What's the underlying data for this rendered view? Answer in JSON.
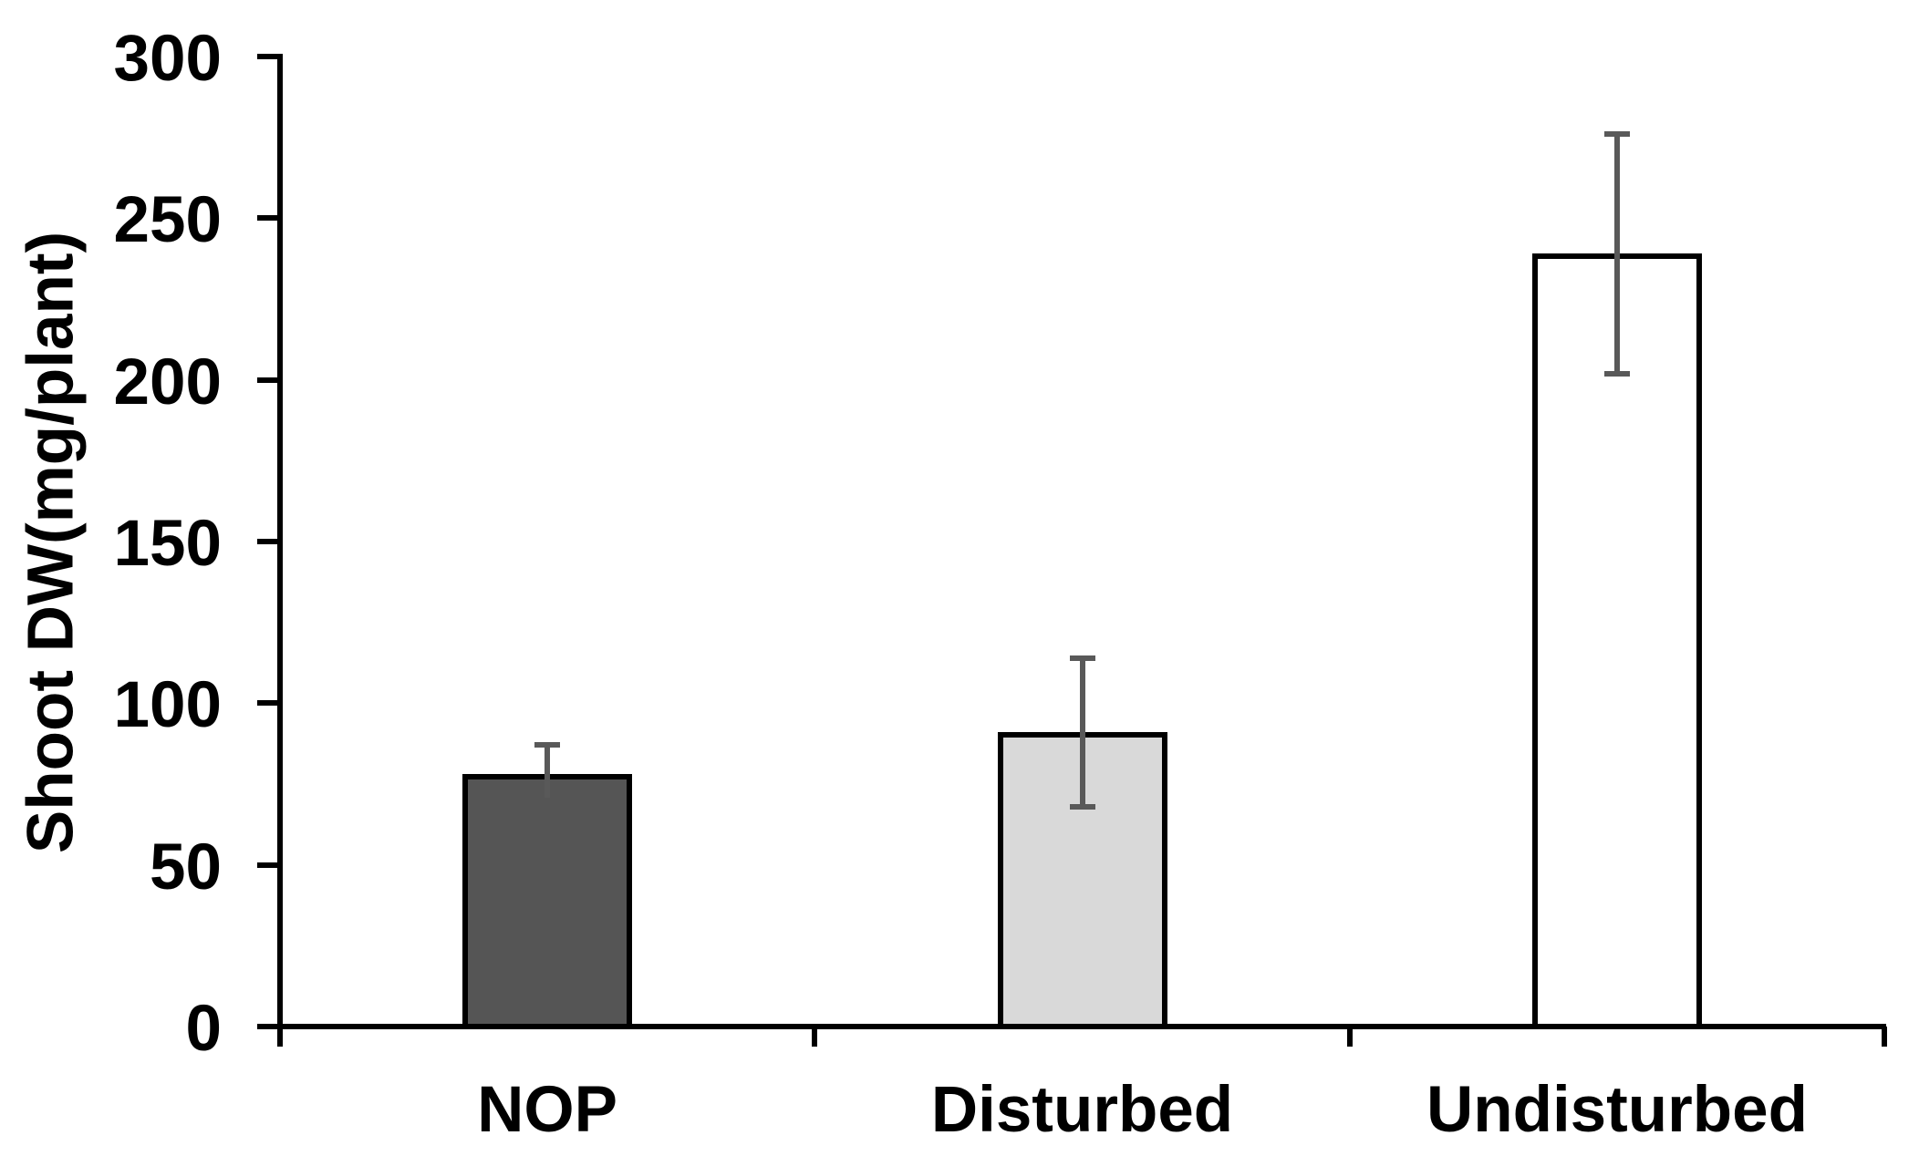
{
  "chart_data": {
    "type": "bar",
    "title": "",
    "xlabel": "",
    "ylabel": "Shoot DW(mg/plant)",
    "categories": [
      "NOP",
      "Disturbed",
      "Undisturbed"
    ],
    "values": [
      78,
      91,
      239
    ],
    "errors": [
      9,
      23,
      37
    ],
    "error_lower_visible": [
      false,
      true,
      true
    ],
    "bar_colors": [
      "#555555",
      "#D9D9D9",
      "#FFFFFF"
    ],
    "bar_border_color": "#000000",
    "error_bar_color": "#595959",
    "axis_color": "#000000",
    "ylim": [
      0,
      300
    ],
    "yticks": [
      0,
      50,
      100,
      150,
      200,
      250,
      300
    ],
    "grid": false,
    "legend_position": "none"
  }
}
